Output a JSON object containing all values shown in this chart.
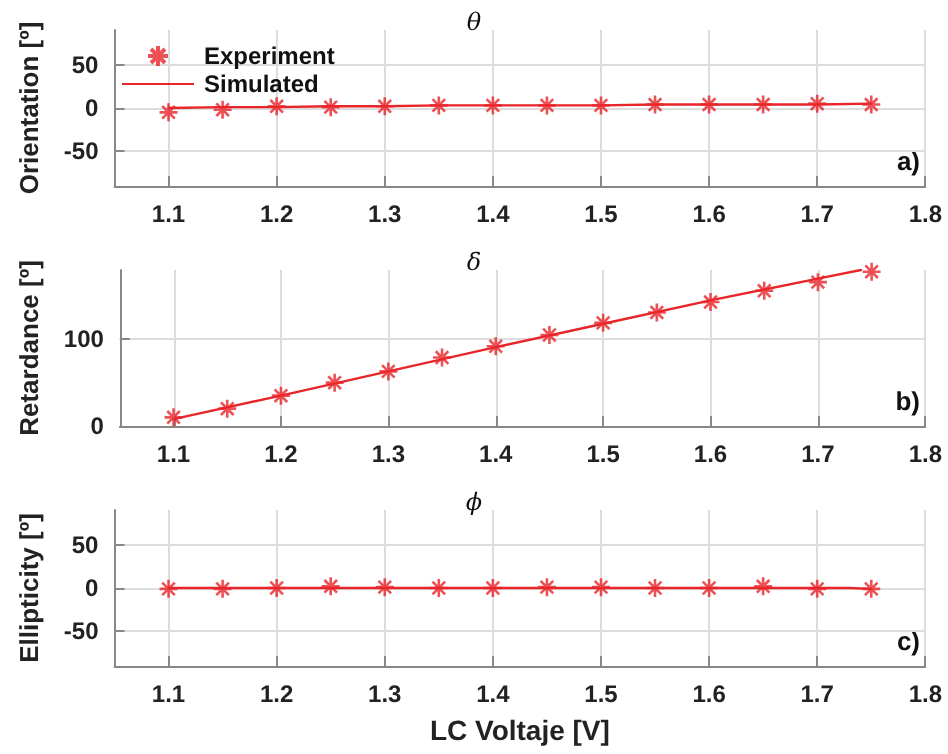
{
  "chart_data": [
    {
      "type": "line",
      "title": "θ",
      "ylabel": "Orientation [º]",
      "x": [
        1.1,
        1.15,
        1.2,
        1.25,
        1.3,
        1.35,
        1.4,
        1.45,
        1.5,
        1.55,
        1.6,
        1.65,
        1.7,
        1.75
      ],
      "xlim": [
        1.05,
        1.8
      ],
      "xticks": [
        1.1,
        1.2,
        1.3,
        1.4,
        1.5,
        1.6,
        1.7,
        1.8
      ],
      "ylim": [
        -90,
        90
      ],
      "yticks": [
        -50,
        0,
        50
      ],
      "grid": true,
      "legend": "top left",
      "annotations": [
        "a)"
      ],
      "series": [
        {
          "name": "Experiment",
          "type": "scatter",
          "marker": "cross",
          "color": "#e8262a",
          "values": [
            -5,
            -2,
            2,
            1,
            2,
            3,
            3,
            3,
            3,
            4,
            4,
            4,
            5,
            4
          ]
        },
        {
          "name": "Simulated",
          "marker": "none",
          "color": "#e8262a",
          "values": [
            0,
            1,
            1,
            2,
            2,
            3,
            3,
            3,
            3,
            4,
            4,
            4,
            4,
            5
          ]
        }
      ]
    },
    {
      "type": "line",
      "title": "δ",
      "ylabel": "Retardance [º]",
      "x": [
        1.1,
        1.15,
        1.2,
        1.25,
        1.3,
        1.35,
        1.4,
        1.45,
        1.5,
        1.55,
        1.6,
        1.65,
        1.7,
        1.75
      ],
      "xlim": [
        1.05,
        1.8
      ],
      "xticks": [
        1.1,
        1.2,
        1.3,
        1.4,
        1.5,
        1.6,
        1.7,
        1.8
      ],
      "ylim": [
        0,
        180
      ],
      "yticks": [
        0,
        100
      ],
      "grid": true,
      "annotations": [
        "b)"
      ],
      "series": [
        {
          "type": "scatter",
          "marker": "cross",
          "color": "#e8262a",
          "values": [
            10,
            20,
            35,
            50,
            63,
            79,
            92,
            105,
            119,
            131,
            143,
            156,
            166,
            178
          ]
        },
        {
          "marker": "none",
          "color": "#e8262a",
          "x": [
            1.1,
            1.2,
            1.3,
            1.4,
            1.5,
            1.6,
            1.7,
            1.74
          ],
          "values": [
            8,
            35,
            63,
            91,
            118,
            145,
            170,
            180
          ]
        }
      ]
    },
    {
      "type": "line",
      "title": "ϕ",
      "ylabel": "Ellipticity [º]",
      "xlabel": "LC Voltaje [V]",
      "x": [
        1.1,
        1.15,
        1.2,
        1.25,
        1.3,
        1.35,
        1.4,
        1.45,
        1.5,
        1.55,
        1.6,
        1.65,
        1.7,
        1.75
      ],
      "xlim": [
        1.05,
        1.8
      ],
      "xticks": [
        1.1,
        1.2,
        1.3,
        1.4,
        1.5,
        1.6,
        1.7,
        1.8
      ],
      "ylim": [
        -90,
        90
      ],
      "yticks": [
        -50,
        0,
        50
      ],
      "grid": true,
      "annotations": [
        "c)"
      ],
      "series": [
        {
          "type": "scatter",
          "marker": "cross",
          "color": "#e8262a",
          "values": [
            -1,
            -1,
            0,
            2,
            1,
            0,
            0,
            1,
            1,
            0,
            0,
            2,
            -1,
            -1
          ]
        },
        {
          "marker": "none",
          "color": "#e8262a",
          "x": [
            1.1,
            1.2,
            1.3,
            1.4,
            1.5,
            1.6,
            1.7,
            1.73,
            1.75
          ],
          "values": [
            0,
            0,
            0,
            0,
            0,
            0,
            0,
            0,
            -1
          ]
        }
      ]
    }
  ]
}
